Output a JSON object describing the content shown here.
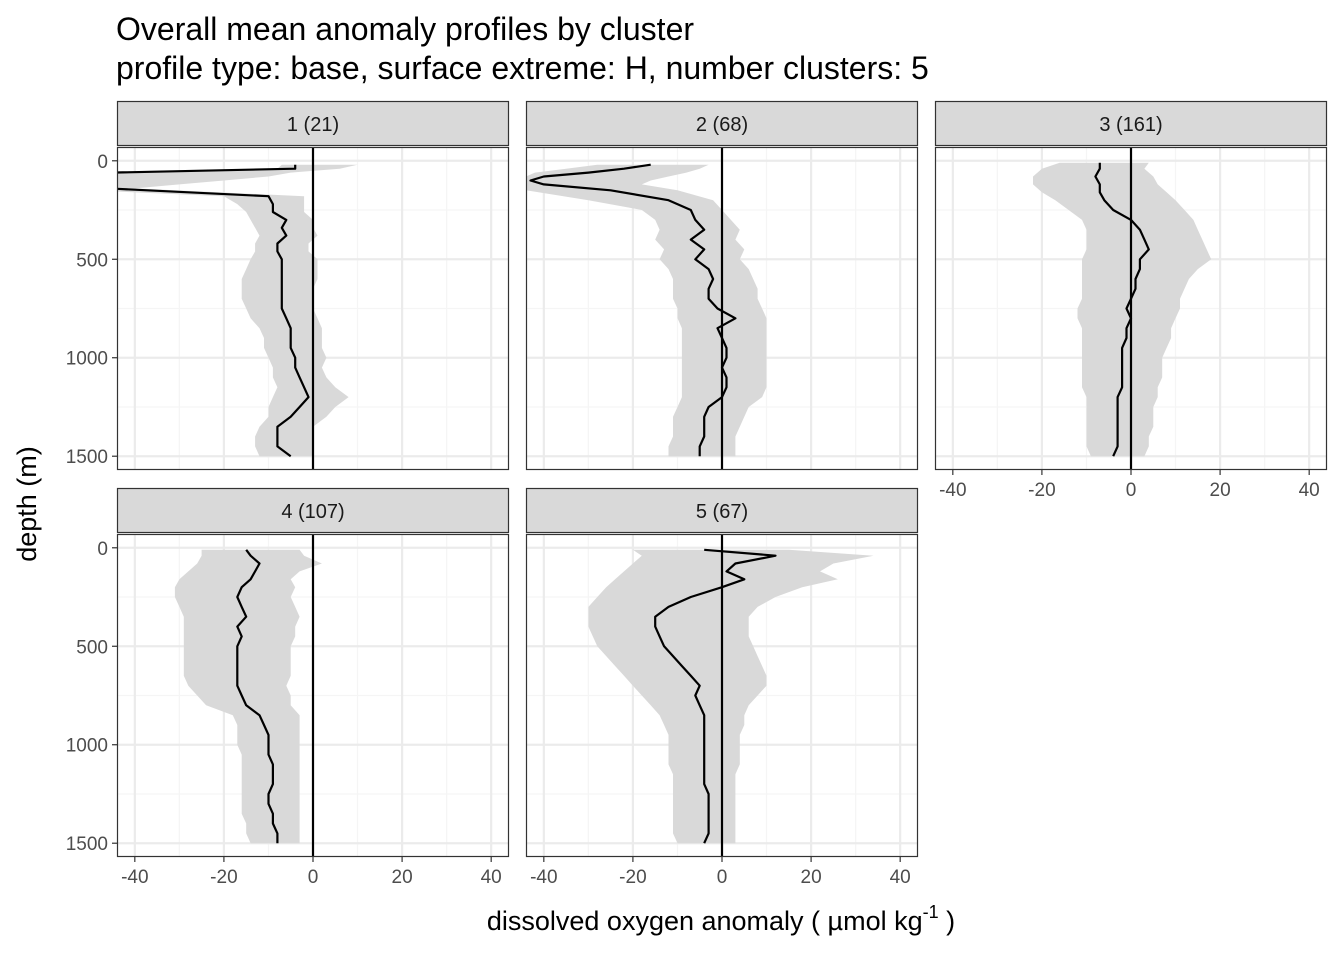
{
  "chart_data": {
    "type": "line",
    "title": "Overall mean anomaly profiles by cluster",
    "subtitle": "profile type: base, surface extreme: H, number clusters: 5",
    "xlabel": {
      "main": "dissolved oxygen anomaly ( µmol kg",
      "sup": "-1",
      "end": " )"
    },
    "ylabel": "depth (m)",
    "xlim": [
      -44,
      44
    ],
    "ylim": [
      1570,
      -70
    ],
    "x_ticks": [
      -40,
      -20,
      0,
      20,
      40
    ],
    "y_ticks": [
      0,
      500,
      1000,
      1500
    ],
    "reference_line_x": 0,
    "grid": true,
    "colors": {
      "line": "#000000",
      "ribbon": "#d9d9d9",
      "strip": "#d9d9d9",
      "grid_major": "#ebebeb",
      "grid_minor": "#f5f5f5",
      "border": "#333333"
    },
    "panels": [
      {
        "label": "1 (21)",
        "depth": [
          20,
          40,
          60,
          80,
          100,
          120,
          140,
          180,
          220,
          260,
          300,
          340,
          380,
          420,
          460,
          500,
          550,
          600,
          650,
          700,
          750,
          800,
          850,
          900,
          950,
          1000,
          1050,
          1100,
          1150,
          1200,
          1250,
          1300,
          1350,
          1400,
          1450,
          1500
        ],
        "mean": [
          -4,
          -4,
          -45,
          -46,
          -46,
          -46,
          -46,
          -10,
          -9,
          -9,
          -6,
          -7,
          -6,
          -8,
          -8,
          -7,
          -7,
          -7,
          -7,
          -7,
          -7,
          -6,
          -5,
          -5,
          -5,
          -4,
          -4,
          -3,
          -2,
          -1,
          -3,
          -5,
          -8,
          -8,
          -8,
          -5
        ],
        "lower": [
          -7,
          -8,
          -60,
          -60,
          -60,
          -60,
          -60,
          -20,
          -17,
          -15,
          -14,
          -13,
          -12,
          -13,
          -13,
          -14,
          -15,
          -16,
          -16,
          -16,
          -15,
          -14,
          -12,
          -11,
          -11,
          -10,
          -9,
          -9,
          -8,
          -9,
          -10,
          -10,
          -12,
          -13,
          -13,
          -12
        ],
        "upper": [
          10,
          6,
          -5,
          -10,
          -20,
          -30,
          -40,
          -2,
          -2,
          -2,
          0,
          0,
          1,
          -1,
          -1,
          1,
          1,
          1,
          0,
          0,
          0,
          1,
          2,
          2,
          2,
          3,
          2,
          3,
          5,
          8,
          5,
          3,
          0,
          0,
          0,
          0
        ]
      },
      {
        "label": "2 (68)",
        "depth": [
          20,
          40,
          60,
          80,
          100,
          120,
          150,
          200,
          250,
          300,
          350,
          400,
          450,
          500,
          550,
          600,
          650,
          700,
          750,
          800,
          850,
          900,
          950,
          1000,
          1050,
          1100,
          1150,
          1200,
          1250,
          1300,
          1350,
          1400,
          1450,
          1500
        ],
        "mean": [
          -16,
          -22,
          -30,
          -40,
          -43,
          -40,
          -25,
          -12,
          -7,
          -6,
          -4,
          -7,
          -4,
          -6,
          -3,
          -2,
          -3,
          -3,
          -1,
          3,
          -1,
          0,
          1,
          1,
          0,
          1,
          1,
          0,
          -3,
          -4,
          -4,
          -4,
          -5,
          -5
        ],
        "lower": [
          -28,
          -35,
          -42,
          -44,
          -44,
          -44,
          -44,
          -30,
          -18,
          -15,
          -14,
          -15,
          -13,
          -14,
          -12,
          -11,
          -11,
          -11,
          -10,
          -10,
          -9,
          -9,
          -9,
          -9,
          -9,
          -9,
          -9,
          -9,
          -10,
          -11,
          -11,
          -11,
          -12,
          -12
        ],
        "upper": [
          -3,
          -5,
          -8,
          -12,
          -16,
          -18,
          -10,
          -2,
          0,
          2,
          4,
          3,
          5,
          4,
          6,
          7,
          8,
          8,
          9,
          10,
          10,
          10,
          10,
          10,
          10,
          10,
          10,
          9,
          6,
          5,
          4,
          3,
          3,
          3
        ]
      },
      {
        "label": "3 (161)",
        "depth": [
          10,
          40,
          80,
          120,
          160,
          200,
          250,
          300,
          350,
          400,
          450,
          500,
          550,
          600,
          650,
          700,
          750,
          800,
          850,
          900,
          950,
          1000,
          1050,
          1100,
          1150,
          1200,
          1250,
          1300,
          1350,
          1400,
          1450,
          1500
        ],
        "mean": [
          -7,
          -7,
          -8,
          -7,
          -7,
          -6,
          -4,
          0,
          2,
          3,
          4,
          2,
          2,
          1,
          1,
          0,
          -1,
          0,
          -1,
          -1,
          -2,
          -2,
          -2,
          -2,
          -2,
          -3,
          -3,
          -3,
          -3,
          -3,
          -3,
          -4
        ],
        "lower": [
          -16,
          -20,
          -22,
          -22,
          -20,
          -17,
          -14,
          -11,
          -10,
          -10,
          -10,
          -11,
          -11,
          -11,
          -11,
          -11,
          -12,
          -12,
          -11,
          -11,
          -11,
          -11,
          -11,
          -11,
          -11,
          -10,
          -10,
          -10,
          -10,
          -10,
          -10,
          -9
        ],
        "upper": [
          4,
          3,
          5,
          6,
          8,
          10,
          12,
          14,
          15,
          16,
          17,
          18,
          15,
          13,
          12,
          11,
          11,
          10,
          9,
          9,
          8,
          7,
          7,
          7,
          6,
          6,
          5,
          5,
          5,
          4,
          4,
          3
        ]
      },
      {
        "label": "4 (107)",
        "depth": [
          10,
          40,
          80,
          120,
          160,
          200,
          250,
          300,
          350,
          400,
          450,
          500,
          550,
          600,
          650,
          700,
          750,
          800,
          850,
          900,
          950,
          1000,
          1050,
          1100,
          1150,
          1200,
          1250,
          1300,
          1350,
          1400,
          1450,
          1500
        ],
        "mean": [
          -15,
          -14,
          -12,
          -13,
          -14,
          -16,
          -17,
          -16,
          -15,
          -17,
          -16,
          -17,
          -17,
          -17,
          -17,
          -17,
          -16,
          -15,
          -12,
          -11,
          -10,
          -10,
          -10,
          -9,
          -9,
          -9,
          -10,
          -10,
          -9,
          -9,
          -8,
          -8
        ],
        "lower": [
          -25,
          -25,
          -26,
          -28,
          -30,
          -31,
          -31,
          -30,
          -29,
          -29,
          -29,
          -29,
          -29,
          -29,
          -29,
          -28,
          -26,
          -24,
          -18,
          -17,
          -17,
          -17,
          -16,
          -16,
          -16,
          -16,
          -16,
          -16,
          -16,
          -15,
          -15,
          -14
        ],
        "upper": [
          -3,
          -2,
          2,
          -3,
          -5,
          -4,
          -5,
          -4,
          -3,
          -4,
          -4,
          -5,
          -5,
          -5,
          -5,
          -6,
          -5,
          -5,
          -3,
          -3,
          -3,
          -3,
          -3,
          -3,
          -3,
          -3,
          -3,
          -3,
          -3,
          -3,
          -3,
          -3
        ]
      },
      {
        "label": "5 (67)",
        "depth": [
          10,
          40,
          80,
          120,
          160,
          200,
          250,
          300,
          350,
          400,
          450,
          500,
          550,
          600,
          650,
          700,
          750,
          800,
          850,
          900,
          950,
          1000,
          1050,
          1100,
          1150,
          1200,
          1250,
          1300,
          1350,
          1400,
          1450,
          1500
        ],
        "mean": [
          -4,
          12,
          3,
          1,
          5,
          0,
          -7,
          -12,
          -15,
          -15,
          -14,
          -13,
          -11,
          -9,
          -7,
          -5,
          -6,
          -5,
          -4,
          -4,
          -4,
          -4,
          -4,
          -4,
          -4,
          -4,
          -3,
          -3,
          -3,
          -3,
          -3,
          -4
        ],
        "lower": [
          -20,
          -18,
          -20,
          -22,
          -24,
          -26,
          -28,
          -30,
          -30,
          -30,
          -29,
          -28,
          -26,
          -24,
          -22,
          -20,
          -18,
          -16,
          -14,
          -13,
          -12,
          -12,
          -12,
          -12,
          -11,
          -11,
          -11,
          -11,
          -11,
          -11,
          -11,
          -10
        ],
        "upper": [
          15,
          34,
          25,
          22,
          26,
          18,
          12,
          8,
          6,
          6,
          6,
          7,
          8,
          9,
          10,
          10,
          8,
          6,
          5,
          5,
          4,
          4,
          4,
          4,
          3,
          3,
          3,
          3,
          3,
          3,
          3,
          3
        ]
      }
    ]
  }
}
